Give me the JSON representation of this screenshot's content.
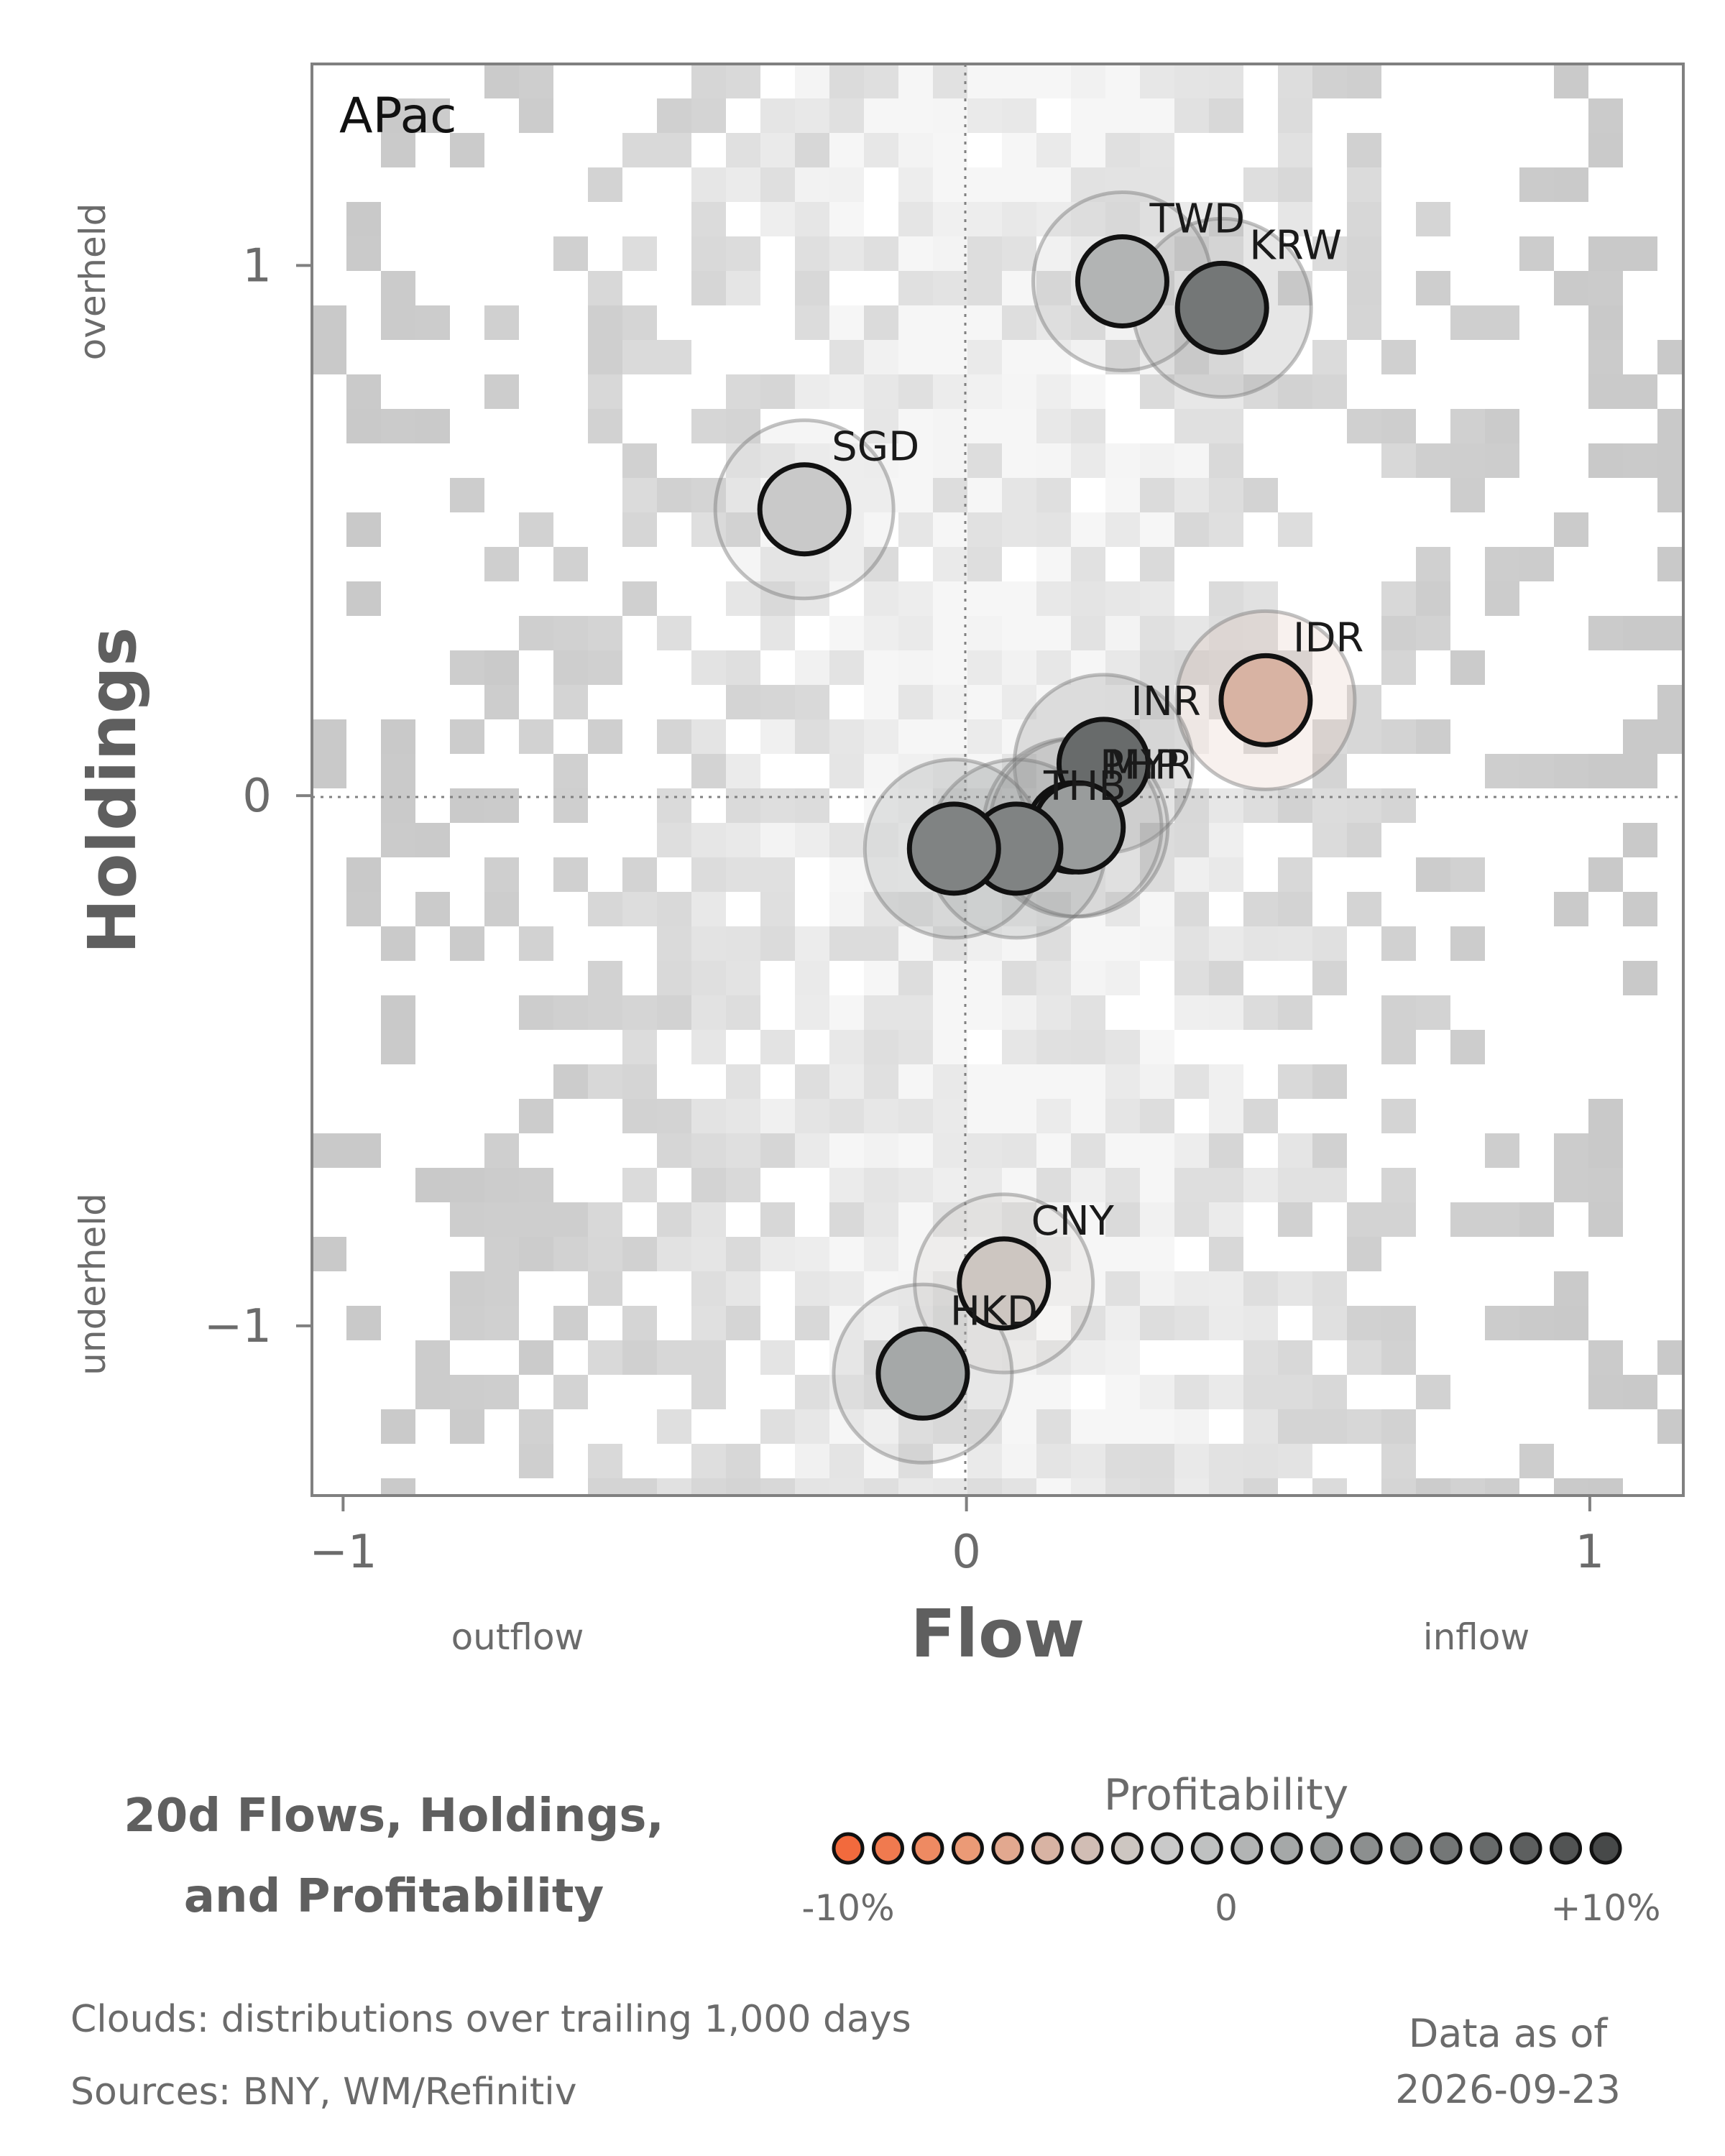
{
  "chart_data": {
    "type": "scatter",
    "title_lines": [
      "20d Flows, Holdings,",
      "and Profitability"
    ],
    "region": "APac",
    "xlabel": "Flow",
    "ylabel": "Holdings",
    "x_direction_labels": {
      "low": "outflow",
      "high": "inflow"
    },
    "y_direction_labels": {
      "low": "underheld",
      "high": "overheld"
    },
    "xlim": [
      -1.05,
      1.15
    ],
    "ylim": [
      -1.32,
      1.38
    ],
    "x_ticks": [
      -1,
      0,
      1
    ],
    "x_tick_labels": [
      "−1",
      "0",
      "1"
    ],
    "y_ticks": [
      -1,
      0,
      1
    ],
    "y_tick_labels": [
      "−1",
      "0",
      "1"
    ],
    "reference_lines": {
      "x": 0,
      "y": 0
    },
    "grid": false,
    "points": [
      {
        "name": "TWD",
        "flow": 0.25,
        "holdings": 0.97,
        "profitability": 1
      },
      {
        "name": "KRW",
        "flow": 0.41,
        "holdings": 0.92,
        "profitability": 6
      },
      {
        "name": "SGD",
        "flow": -0.26,
        "holdings": 0.54,
        "profitability": -2
      },
      {
        "name": "IDR",
        "flow": 0.48,
        "holdings": 0.18,
        "profitability": -5
      },
      {
        "name": "INR",
        "flow": 0.22,
        "holdings": 0.06,
        "profitability": 7
      },
      {
        "name": "PHP",
        "flow": 0.17,
        "holdings": -0.06,
        "profitability": 2
      },
      {
        "name": "MYR",
        "flow": 0.18,
        "holdings": -0.06,
        "profitability": 3
      },
      {
        "name": "THB",
        "flow": 0.08,
        "holdings": -0.1,
        "profitability": 5
      },
      {
        "name": "THB_dup",
        "flow": -0.02,
        "holdings": -0.1,
        "profitability": 5
      },
      {
        "name": "CNY",
        "flow": 0.06,
        "holdings": -0.92,
        "profitability": -3
      },
      {
        "name": "HKD",
        "flow": -0.07,
        "holdings": -1.09,
        "profitability": 2
      }
    ],
    "legend": {
      "title": "Profitability",
      "tick_labels": [
        "-10%",
        "0",
        "+10%"
      ],
      "range": [
        -10,
        10
      ],
      "colors": [
        "#f26a3d",
        "#f07a4f",
        "#ee8a62",
        "#eb9a76",
        "#e2a88f",
        "#d8b3a3",
        "#d1bdb4",
        "#cdc6c1",
        "#c9c9c9",
        "#bfc1c1",
        "#b2b4b4",
        "#a5a8a8",
        "#999c9c",
        "#8c8f8f",
        "#808383",
        "#747777",
        "#686b6b",
        "#5d5f5f",
        "#525454",
        "#474949"
      ]
    },
    "cloud_note": "Clouds:  distributions over trailing 1,000 days",
    "sources": "Sources:  BNY, WM/Refinitiv",
    "date_caption": "Data as of",
    "date": "2026-09-23"
  }
}
